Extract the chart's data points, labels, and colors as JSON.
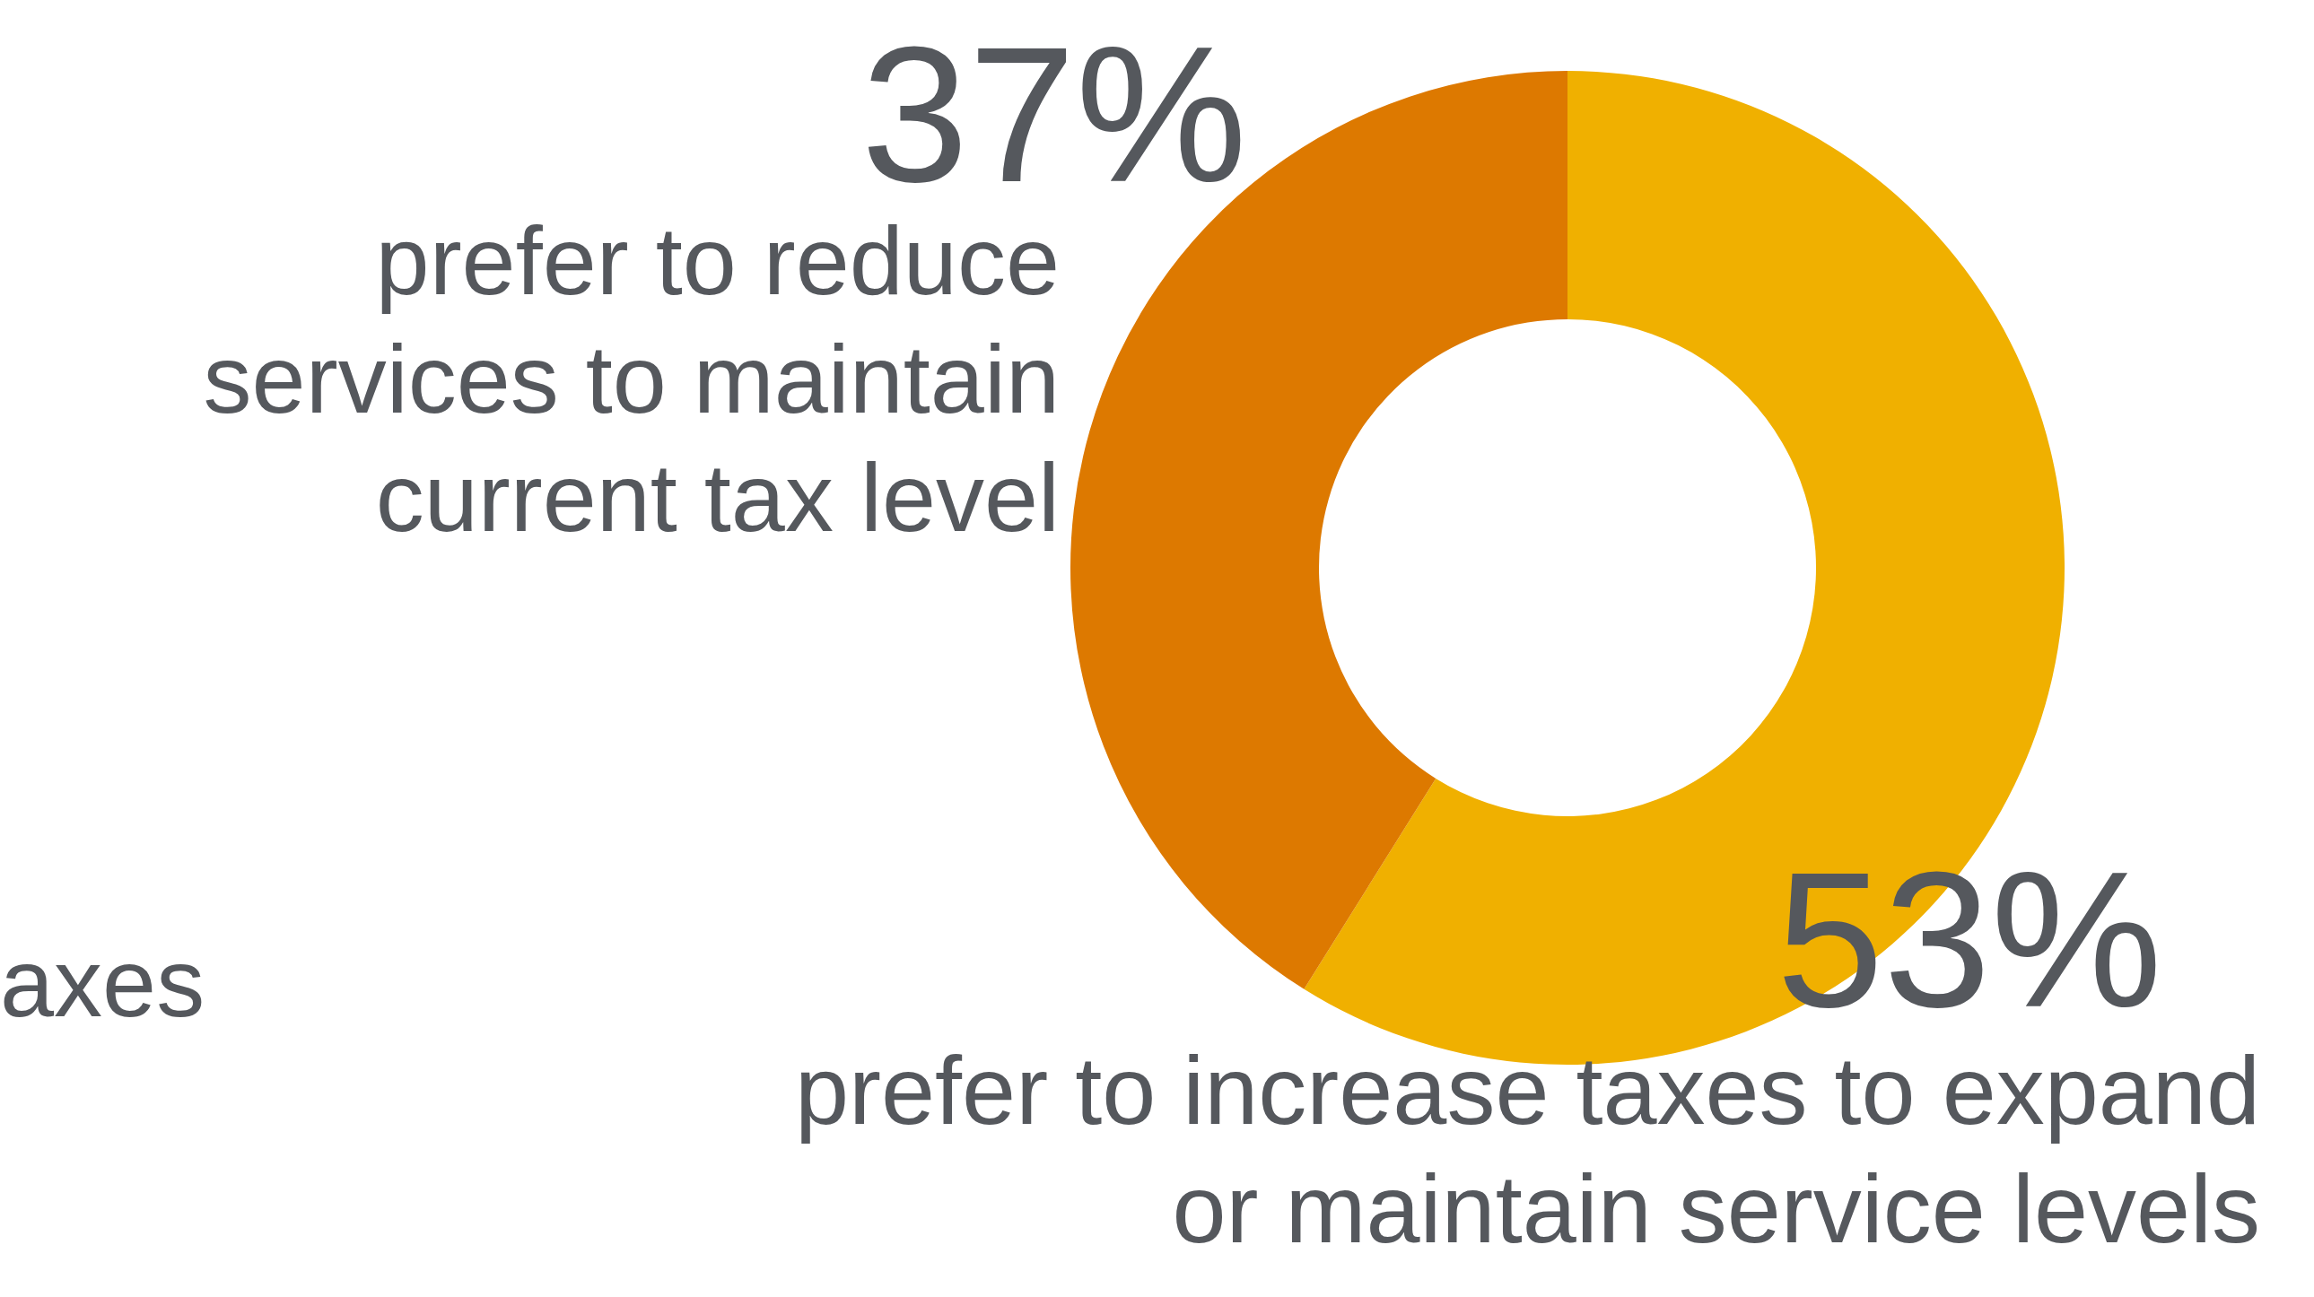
{
  "chart_data": {
    "type": "donut",
    "categories": [
      "prefer to increase taxes to expand or maintain service levels",
      "prefer to reduce services to maintain current tax level"
    ],
    "values": [
      53,
      37
    ],
    "colors": [
      "#f0b000",
      "#dd7900"
    ],
    "value_labels": [
      "53%",
      "37%"
    ],
    "annotations": [
      "axes"
    ],
    "legend": false
  }
}
